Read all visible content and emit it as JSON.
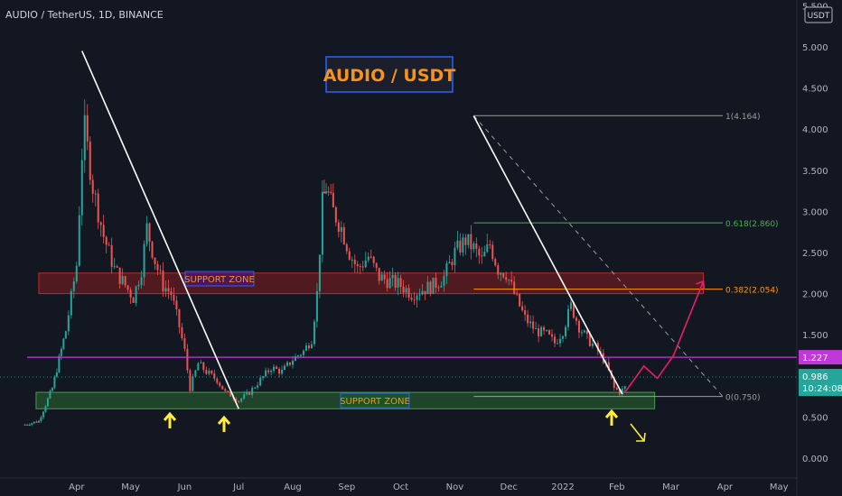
{
  "header": {
    "symbol_line": "AUDIO / TetherUS, 1D, BINANCE"
  },
  "title_box": {
    "text": "AUDIO / USDT"
  },
  "currency_badge": "USDT",
  "colors": {
    "background": "#131722",
    "up": "#26a69a",
    "down": "#ef5350",
    "title_text": "#f7931a",
    "title_border": "#2962ff",
    "resistance_line": "#c039d8",
    "fib_green": "#4caf50",
    "fib_orange": "#ff9800",
    "arrow_yellow": "#ffeb3b",
    "projection": "#e91e63"
  },
  "chart_data": {
    "type": "candlestick",
    "title": "AUDIO / TetherUS, 1D, BINANCE",
    "ylabel": "USDT",
    "ylim": [
      0,
      5.5
    ],
    "y_ticks": [
      "0.000",
      "0.500",
      "1.000",
      "1.500",
      "2.000",
      "2.500",
      "3.000",
      "3.500",
      "4.000",
      "4.500",
      "5.000",
      "5.500"
    ],
    "x_ticks": [
      "Apr",
      "May",
      "Jun",
      "Jul",
      "Aug",
      "Sep",
      "Oct",
      "Nov",
      "Dec",
      "2022",
      "Feb",
      "Mar",
      "Apr",
      "May"
    ],
    "x_tick_values": [
      1,
      2,
      3,
      4,
      5,
      6,
      7,
      8,
      9,
      10,
      11,
      12,
      13,
      14
    ],
    "x_range": [
      0.0,
      14.3
    ],
    "price_path": [
      [
        0.0,
        0.4
      ],
      [
        0.3,
        0.45
      ],
      [
        0.55,
        0.85
      ],
      [
        0.8,
        1.55
      ],
      [
        1.0,
        2.35
      ],
      [
        1.1,
        3.7
      ],
      [
        1.15,
        4.0
      ],
      [
        1.3,
        3.3
      ],
      [
        1.5,
        2.7
      ],
      [
        1.7,
        2.3
      ],
      [
        1.9,
        2.1
      ],
      [
        2.05,
        1.95
      ],
      [
        2.2,
        2.3
      ],
      [
        2.3,
        2.8
      ],
      [
        2.45,
        2.4
      ],
      [
        2.6,
        2.1
      ],
      [
        2.75,
        2.0
      ],
      [
        2.9,
        1.6
      ],
      [
        3.0,
        1.3
      ],
      [
        3.1,
        0.85
      ],
      [
        3.25,
        1.15
      ],
      [
        3.4,
        1.05
      ],
      [
        3.6,
        0.95
      ],
      [
        3.75,
        0.8
      ],
      [
        3.9,
        0.75
      ],
      [
        4.0,
        0.7
      ],
      [
        4.2,
        0.8
      ],
      [
        4.4,
        0.95
      ],
      [
        4.6,
        1.1
      ],
      [
        4.8,
        1.05
      ],
      [
        5.0,
        1.2
      ],
      [
        5.2,
        1.3
      ],
      [
        5.35,
        1.45
      ],
      [
        5.45,
        2.0
      ],
      [
        5.55,
        3.1
      ],
      [
        5.62,
        3.3
      ],
      [
        5.75,
        3.0
      ],
      [
        5.9,
        2.8
      ],
      [
        6.05,
        2.5
      ],
      [
        6.2,
        2.3
      ],
      [
        6.4,
        2.45
      ],
      [
        6.6,
        2.2
      ],
      [
        6.8,
        2.15
      ],
      [
        7.0,
        2.1
      ],
      [
        7.2,
        2.0
      ],
      [
        7.4,
        2.05
      ],
      [
        7.6,
        2.1
      ],
      [
        7.8,
        2.2
      ],
      [
        8.0,
        2.5
      ],
      [
        8.2,
        2.65
      ],
      [
        8.35,
        2.55
      ],
      [
        8.5,
        2.4
      ],
      [
        8.65,
        2.6
      ],
      [
        8.8,
        2.3
      ],
      [
        8.95,
        2.25
      ],
      [
        9.1,
        2.0
      ],
      [
        9.3,
        1.7
      ],
      [
        9.5,
        1.55
      ],
      [
        9.7,
        1.5
      ],
      [
        9.85,
        1.4
      ],
      [
        10.0,
        1.55
      ],
      [
        10.15,
        1.85
      ],
      [
        10.3,
        1.6
      ],
      [
        10.45,
        1.45
      ],
      [
        10.6,
        1.35
      ],
      [
        10.75,
        1.2
      ],
      [
        10.85,
        1.05
      ],
      [
        10.95,
        0.85
      ],
      [
        11.05,
        0.8
      ],
      [
        11.15,
        0.86
      ]
    ],
    "last_price": 0.986,
    "countdown": "10:24:08",
    "resistance_level": 1.227,
    "support_zones": [
      {
        "label": "SUPPORT ZONE",
        "low": 2.0,
        "high": 2.25,
        "x_start": 0.3,
        "x_end": 12.6
      },
      {
        "label": "SUPPORT ZONE",
        "low": 0.6,
        "high": 0.8,
        "x_start": 0.25,
        "x_end": 11.7
      }
    ],
    "fibonacci": [
      {
        "label": "1(4.164)",
        "value": 4.164
      },
      {
        "label": "0.618(2.860)",
        "value": 2.86
      },
      {
        "label": "0.382(2.054)",
        "value": 2.054
      },
      {
        "label": "0(0.750)",
        "value": 0.75
      }
    ],
    "trendlines": [
      {
        "from": [
          1.1,
          4.95
        ],
        "to": [
          4.0,
          0.6
        ]
      },
      {
        "from": [
          8.35,
          4.16
        ],
        "to": [
          11.1,
          0.78
        ]
      }
    ],
    "projection_path": [
      [
        11.15,
        0.8
      ],
      [
        11.5,
        1.12
      ],
      [
        11.75,
        0.97
      ],
      [
        12.05,
        1.25
      ],
      [
        12.6,
        2.15
      ]
    ]
  }
}
